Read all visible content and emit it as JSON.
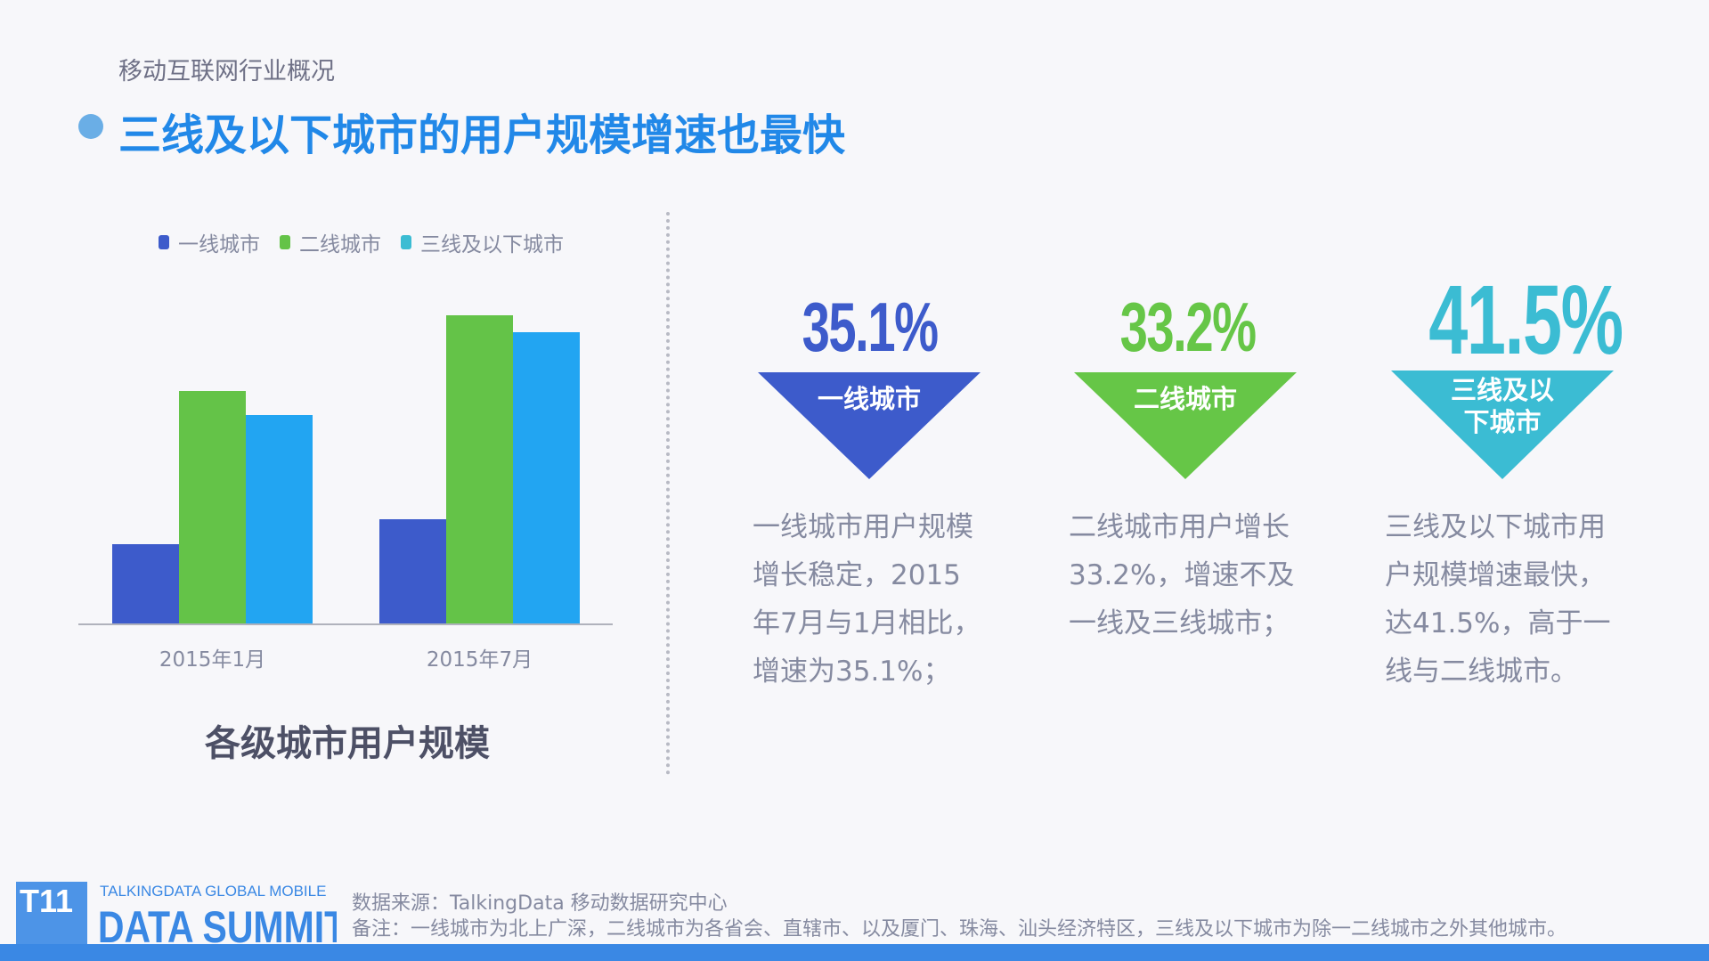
{
  "header": {
    "section": "移动互联网行业概况",
    "title": "三线及以下城市的用户规模增速也最快"
  },
  "chart_data": {
    "type": "bar",
    "title": "各级城市用户规模",
    "categories": [
      "2015年1月",
      "2015年7月"
    ],
    "series": [
      {
        "name": "一线城市",
        "values": [
          89,
          117
        ],
        "color": "#3d5bcb"
      },
      {
        "name": "二线城市",
        "values": [
          261,
          346
        ],
        "color": "#64c348"
      },
      {
        "name": "三线及以下城市",
        "values": [
          234,
          327
        ],
        "color": "#22a5f2"
      }
    ],
    "legend_colors": [
      "#3d5bcb",
      "#64c348",
      "#3bbcd3"
    ],
    "ylim": [
      0,
      346
    ],
    "y_axis_shown": false,
    "grid": false,
    "legend": "top",
    "note": "relative bar heights; no values printed"
  },
  "stats": [
    {
      "value": "35.1%",
      "label_lines": [
        "一线城市"
      ],
      "color": "#3d5bcb",
      "text": [
        "一线城市用户规模",
        "增长稳定，2015",
        "年7月与1月相比，",
        "增速为35.1%；"
      ]
    },
    {
      "value": "33.2%",
      "label_lines": [
        "二线城市"
      ],
      "color": "#66c647",
      "text": [
        "二线城市用户增长",
        "33.2%，增速不及",
        "一线及三线城市；"
      ]
    },
    {
      "value": "41.5%",
      "label_lines": [
        "三线及以",
        "下城市"
      ],
      "color": "#3bbcd3",
      "text": [
        "三线及以下城市用",
        "户规模增速最快，",
        "达41.5%，高于一",
        "线与二线城市。"
      ]
    }
  ],
  "footer": {
    "logo_top": "TALKINGDATA GLOBAL MOBILE",
    "logo_main": "DATA SUMMIT",
    "logo_mark": "T11",
    "source": "数据来源：TalkingData 移动数据研究中心",
    "note": "备注：一线城市为北上广深，二线城市为各省会、直辖市、以及厦门、珠海、汕头经济特区，三线及以下城市为除一二线城市之外其他城市。",
    "bar_color": "#3a88e4"
  }
}
